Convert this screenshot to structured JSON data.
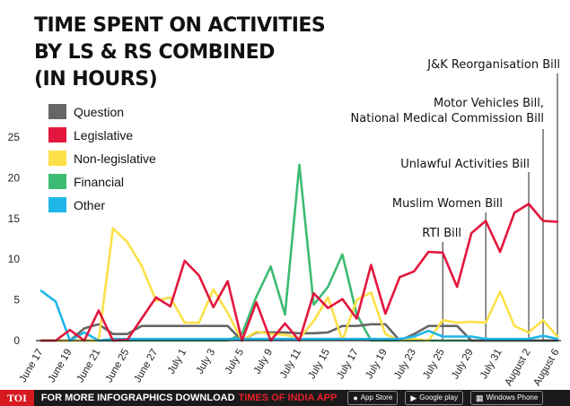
{
  "title_lines": [
    "TIME SPENT ON ACTIVITIES",
    "BY LS & RS COMBINED",
    "(IN HOURS)"
  ],
  "colors": {
    "Question": "#666666",
    "Legislative": "#e3173e",
    "Non-legislative": "#fde047",
    "Financial": "#3dbb73",
    "Other": "#1fb6ea",
    "axis": "#222222"
  },
  "chart_data": {
    "type": "line",
    "title": "TIME SPENT ON ACTIVITIES BY LS & RS COMBINED (IN HOURS)",
    "xlabel": "",
    "ylabel": "",
    "ylim": [
      0,
      25
    ],
    "yticks": [
      0,
      5,
      10,
      15,
      20,
      25
    ],
    "grid": false,
    "legend_position": "top-left",
    "x_tick_labels": [
      "June 17",
      "June 19",
      "June 21",
      "June 25",
      "June 27",
      "July 1",
      "July 3",
      "July 5",
      "July 9",
      "July 11",
      "July 15",
      "July 17",
      "July 19",
      "July 23",
      "July 25",
      "July 29",
      "July 31",
      "August 2",
      "August 6"
    ],
    "x_tick_index": [
      0,
      2,
      4,
      6,
      8,
      10,
      12,
      14,
      16,
      18,
      20,
      22,
      24,
      26,
      28,
      30,
      32,
      34,
      36
    ],
    "series": [
      {
        "name": "Question",
        "values": [
          0,
          0,
          0,
          1.5,
          2.0,
          0.8,
          0.8,
          1.8,
          1.8,
          1.8,
          1.8,
          1.8,
          1.8,
          1.8,
          0,
          1.0,
          1.0,
          1.0,
          0.9,
          0.9,
          1.0,
          1.8,
          1.8,
          2.0,
          2.0,
          0,
          0.8,
          1.8,
          1.8,
          1.8,
          0,
          0,
          0,
          0,
          0,
          0,
          0
        ]
      },
      {
        "name": "Legislative",
        "values": [
          0,
          0,
          1.3,
          0,
          3.7,
          0,
          0.1,
          2.7,
          5.3,
          4.2,
          9.8,
          8.0,
          4.1,
          7.3,
          0,
          4.7,
          0,
          2.1,
          0,
          5.8,
          4.0,
          5.1,
          2.7,
          9.3,
          3.3,
          7.8,
          8.5,
          10.9,
          10.8,
          6.6,
          13.2,
          14.7,
          10.9,
          15.7,
          16.8,
          14.7,
          14.6
        ]
      },
      {
        "name": "Non-legislative",
        "values": [
          0,
          0,
          0,
          0,
          0,
          13.8,
          12.1,
          9.2,
          4.9,
          5.3,
          2.2,
          2.2,
          6.3,
          3.4,
          0,
          1.1,
          0.8,
          0.7,
          0.3,
          2.4,
          5.3,
          0,
          5.0,
          5.9,
          0.8,
          0,
          0.2,
          0,
          2.5,
          2.2,
          2.3,
          2.2,
          6.0,
          1.8,
          1.0,
          2.5,
          0.5
        ]
      },
      {
        "name": "Financial",
        "values": [
          0,
          0,
          0,
          0,
          0,
          0,
          0,
          0,
          0,
          0,
          0,
          0,
          0,
          0,
          0.8,
          5.4,
          9.1,
          3.2,
          21.6,
          4.4,
          6.6,
          10.6,
          3.2,
          0,
          0,
          0,
          0,
          0,
          0,
          0,
          0,
          0,
          0,
          0,
          0,
          0,
          0
        ]
      },
      {
        "name": "Other",
        "values": [
          6.1,
          4.8,
          0,
          1.0,
          0,
          0.2,
          0.2,
          0.2,
          0.2,
          0.2,
          0.2,
          0.2,
          0.2,
          0.2,
          0.2,
          0.2,
          0.2,
          0.2,
          0.2,
          0.2,
          0.2,
          0.2,
          0.2,
          0.2,
          0.2,
          0.2,
          0.5,
          1.2,
          0.5,
          0.5,
          0.5,
          0.2,
          0.2,
          0.2,
          0.2,
          0.6,
          0.2
        ]
      }
    ],
    "annotations": [
      {
        "text": "RTI Bill",
        "index": 28,
        "value": 11.0
      },
      {
        "text": "Muslim Women Bill",
        "index": 31,
        "value": 14.7
      },
      {
        "text": "Unlawful Activities Bill",
        "index": 34,
        "value": 16.8
      },
      {
        "text": "Motor Vehicles Bill, National Medical Commission Bill",
        "index": 35,
        "value": 14.7
      },
      {
        "text": "J&K Reorganisation Bill",
        "index": 36,
        "value": 14.6
      }
    ]
  },
  "footer": {
    "brand": "TOI",
    "cta": "FOR MORE INFOGRAPHICS DOWNLOAD",
    "app_name": "TIMES OF INDIA APP",
    "badge_appstore": "App Store",
    "badge_googleplay": "Google play",
    "badge_windows": "Windows Phone"
  }
}
